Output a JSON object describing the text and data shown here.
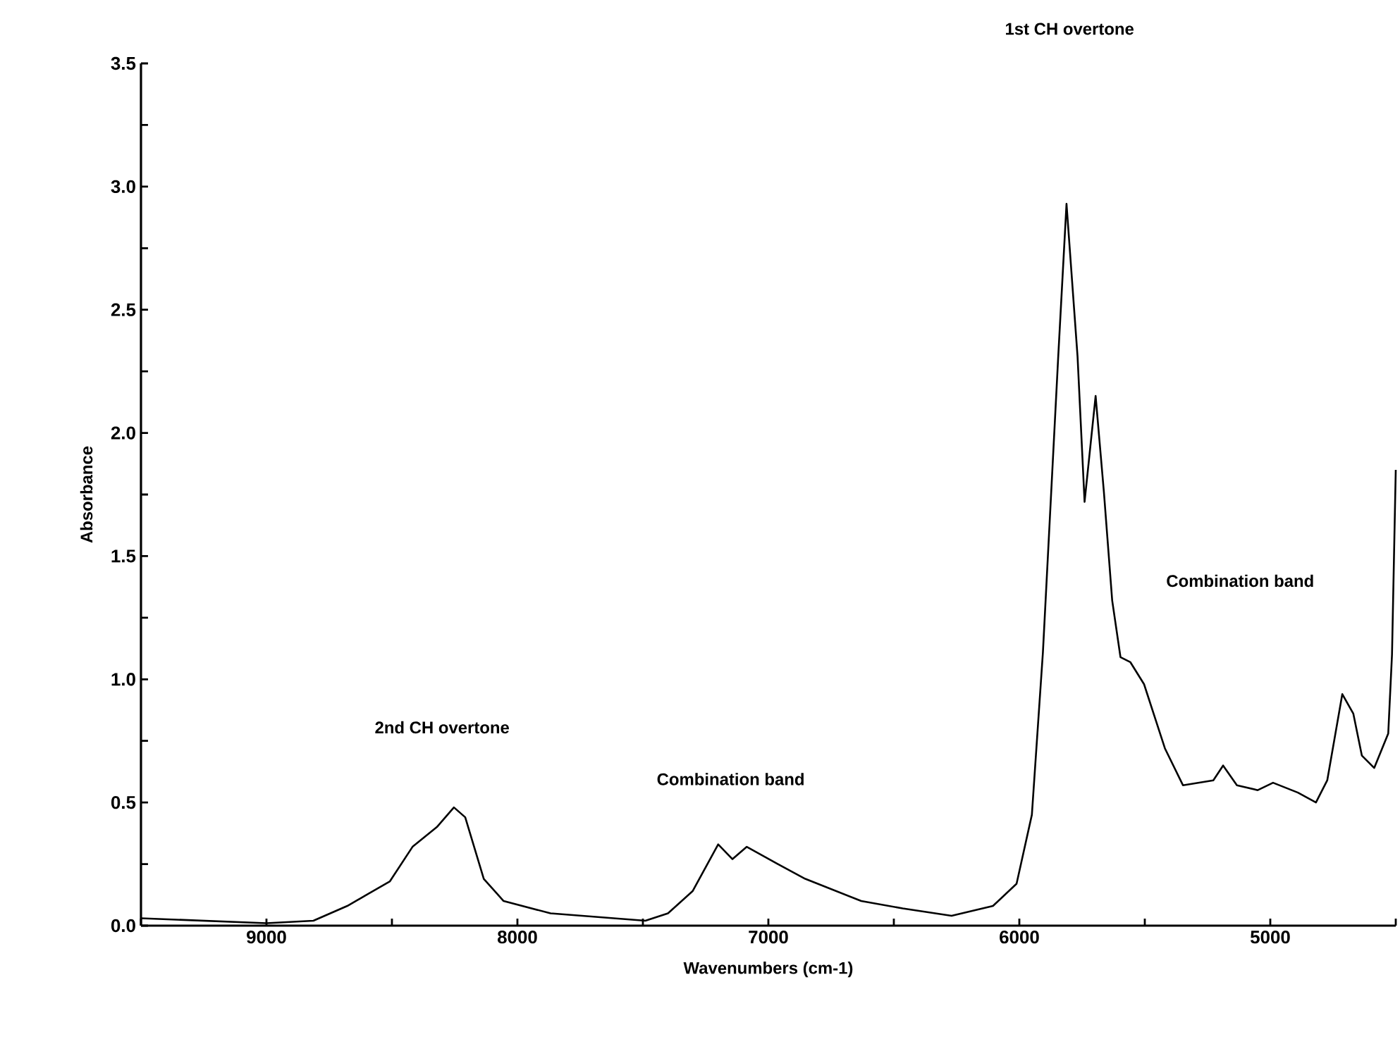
{
  "chart_data": {
    "type": "line",
    "xlabel": "Wavenumbers (cm-1)",
    "ylabel": "Absorbance",
    "xlim": [
      9500,
      4500
    ],
    "ylim": [
      0,
      3.5
    ],
    "xticks": [
      {
        "value": 9500,
        "label": null
      },
      9000,
      {
        "value": 8500,
        "label": null
      },
      8000,
      {
        "value": 7500,
        "label": null
      },
      7000,
      {
        "value": 6500,
        "label": null
      },
      6000,
      {
        "value": 5500,
        "label": null
      },
      5000,
      {
        "value": 4500,
        "label": null
      }
    ],
    "yticks": [
      {
        "value": 0,
        "label": "0.0"
      },
      {
        "value": 0.25,
        "label": null
      },
      0.5,
      {
        "value": 0.75,
        "label": null
      },
      {
        "value": 1,
        "label": "1.0"
      },
      {
        "value": 1.25,
        "label": null
      },
      1.5,
      {
        "value": 1.75,
        "label": null
      },
      {
        "value": 2,
        "label": "2.0"
      },
      {
        "value": 2.25,
        "label": null
      },
      2.5,
      {
        "value": 2.75,
        "label": null
      },
      {
        "value": 3,
        "label": "3.0"
      },
      {
        "value": 3.25,
        "label": null
      },
      3.5
    ],
    "grid": false,
    "marker": "none",
    "line_style": "solid",
    "series": [
      {
        "color": "#000000",
        "x": [
          9500,
          9000,
          8813,
          8678,
          8508,
          8418,
          8321,
          8253,
          8208,
          8134,
          8055,
          7868,
          7490,
          7400,
          7302,
          7200,
          7143,
          7086,
          6962,
          6853,
          6630,
          6465,
          6270,
          6105,
          6011,
          5950,
          5906,
          5845,
          5812,
          5768,
          5740,
          5696,
          5663,
          5630,
          5597,
          5558,
          5503,
          5420,
          5348,
          5227,
          5188,
          5133,
          5050,
          4989,
          4890,
          4818,
          4773,
          4713,
          4669,
          4635,
          4586,
          4530,
          4515,
          4500
        ],
        "values": [
          0.03,
          0.01,
          0.02,
          0.08,
          0.18,
          0.32,
          0.4,
          0.48,
          0.44,
          0.19,
          0.1,
          0.05,
          0.02,
          0.05,
          0.14,
          0.33,
          0.27,
          0.32,
          0.25,
          0.19,
          0.1,
          0.07,
          0.04,
          0.08,
          0.17,
          0.45,
          1.11,
          2.31,
          2.93,
          2.31,
          1.72,
          2.15,
          1.76,
          1.32,
          1.09,
          1.07,
          0.98,
          0.72,
          0.57,
          0.59,
          0.65,
          0.57,
          0.55,
          0.58,
          0.54,
          0.5,
          0.59,
          0.94,
          0.86,
          0.69,
          0.64,
          0.78,
          1.1,
          1.85
        ]
      }
    ],
    "annotations": [
      "2nd CH overtone",
      "Combination band",
      "1st CH overtone",
      "Combination band"
    ]
  }
}
